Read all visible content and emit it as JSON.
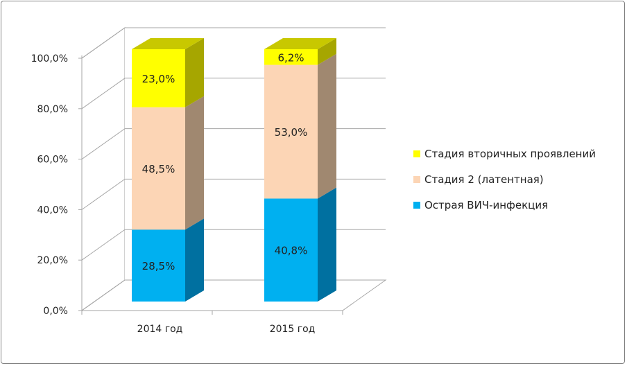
{
  "chart_data": {
    "type": "bar",
    "stacked": true,
    "three_d": true,
    "categories": [
      "2014 год",
      "2015 год"
    ],
    "series": [
      {
        "name": "Острая ВИЧ-инфекция",
        "values": [
          28.5,
          40.8
        ],
        "labels": [
          "28,5%",
          "40,8%"
        ],
        "color": "#00b0f0",
        "side_color": "#0070a0",
        "top_color": "#0090c8"
      },
      {
        "name": "Стадия 2 (латентная)",
        "values": [
          48.5,
          53.0
        ],
        "labels": [
          "48,5%",
          "53,0%"
        ],
        "color": "#fcd5b5",
        "side_color": "#a08870",
        "top_color": "#d8b496"
      },
      {
        "name": "Стадия вторичных проявлений",
        "values": [
          23.0,
          6.2
        ],
        "labels": [
          "23,0%",
          "6,2%"
        ],
        "color": "#ffff00",
        "side_color": "#a6a600",
        "top_color": "#c8c800"
      }
    ],
    "legend_order": [
      2,
      1,
      0
    ],
    "y_ticks": [
      "0,0%",
      "20,0%",
      "40,0%",
      "60,0%",
      "80,0%",
      "100,0%"
    ],
    "ylim": [
      0,
      100
    ],
    "grid": true,
    "legend_position": "right"
  }
}
